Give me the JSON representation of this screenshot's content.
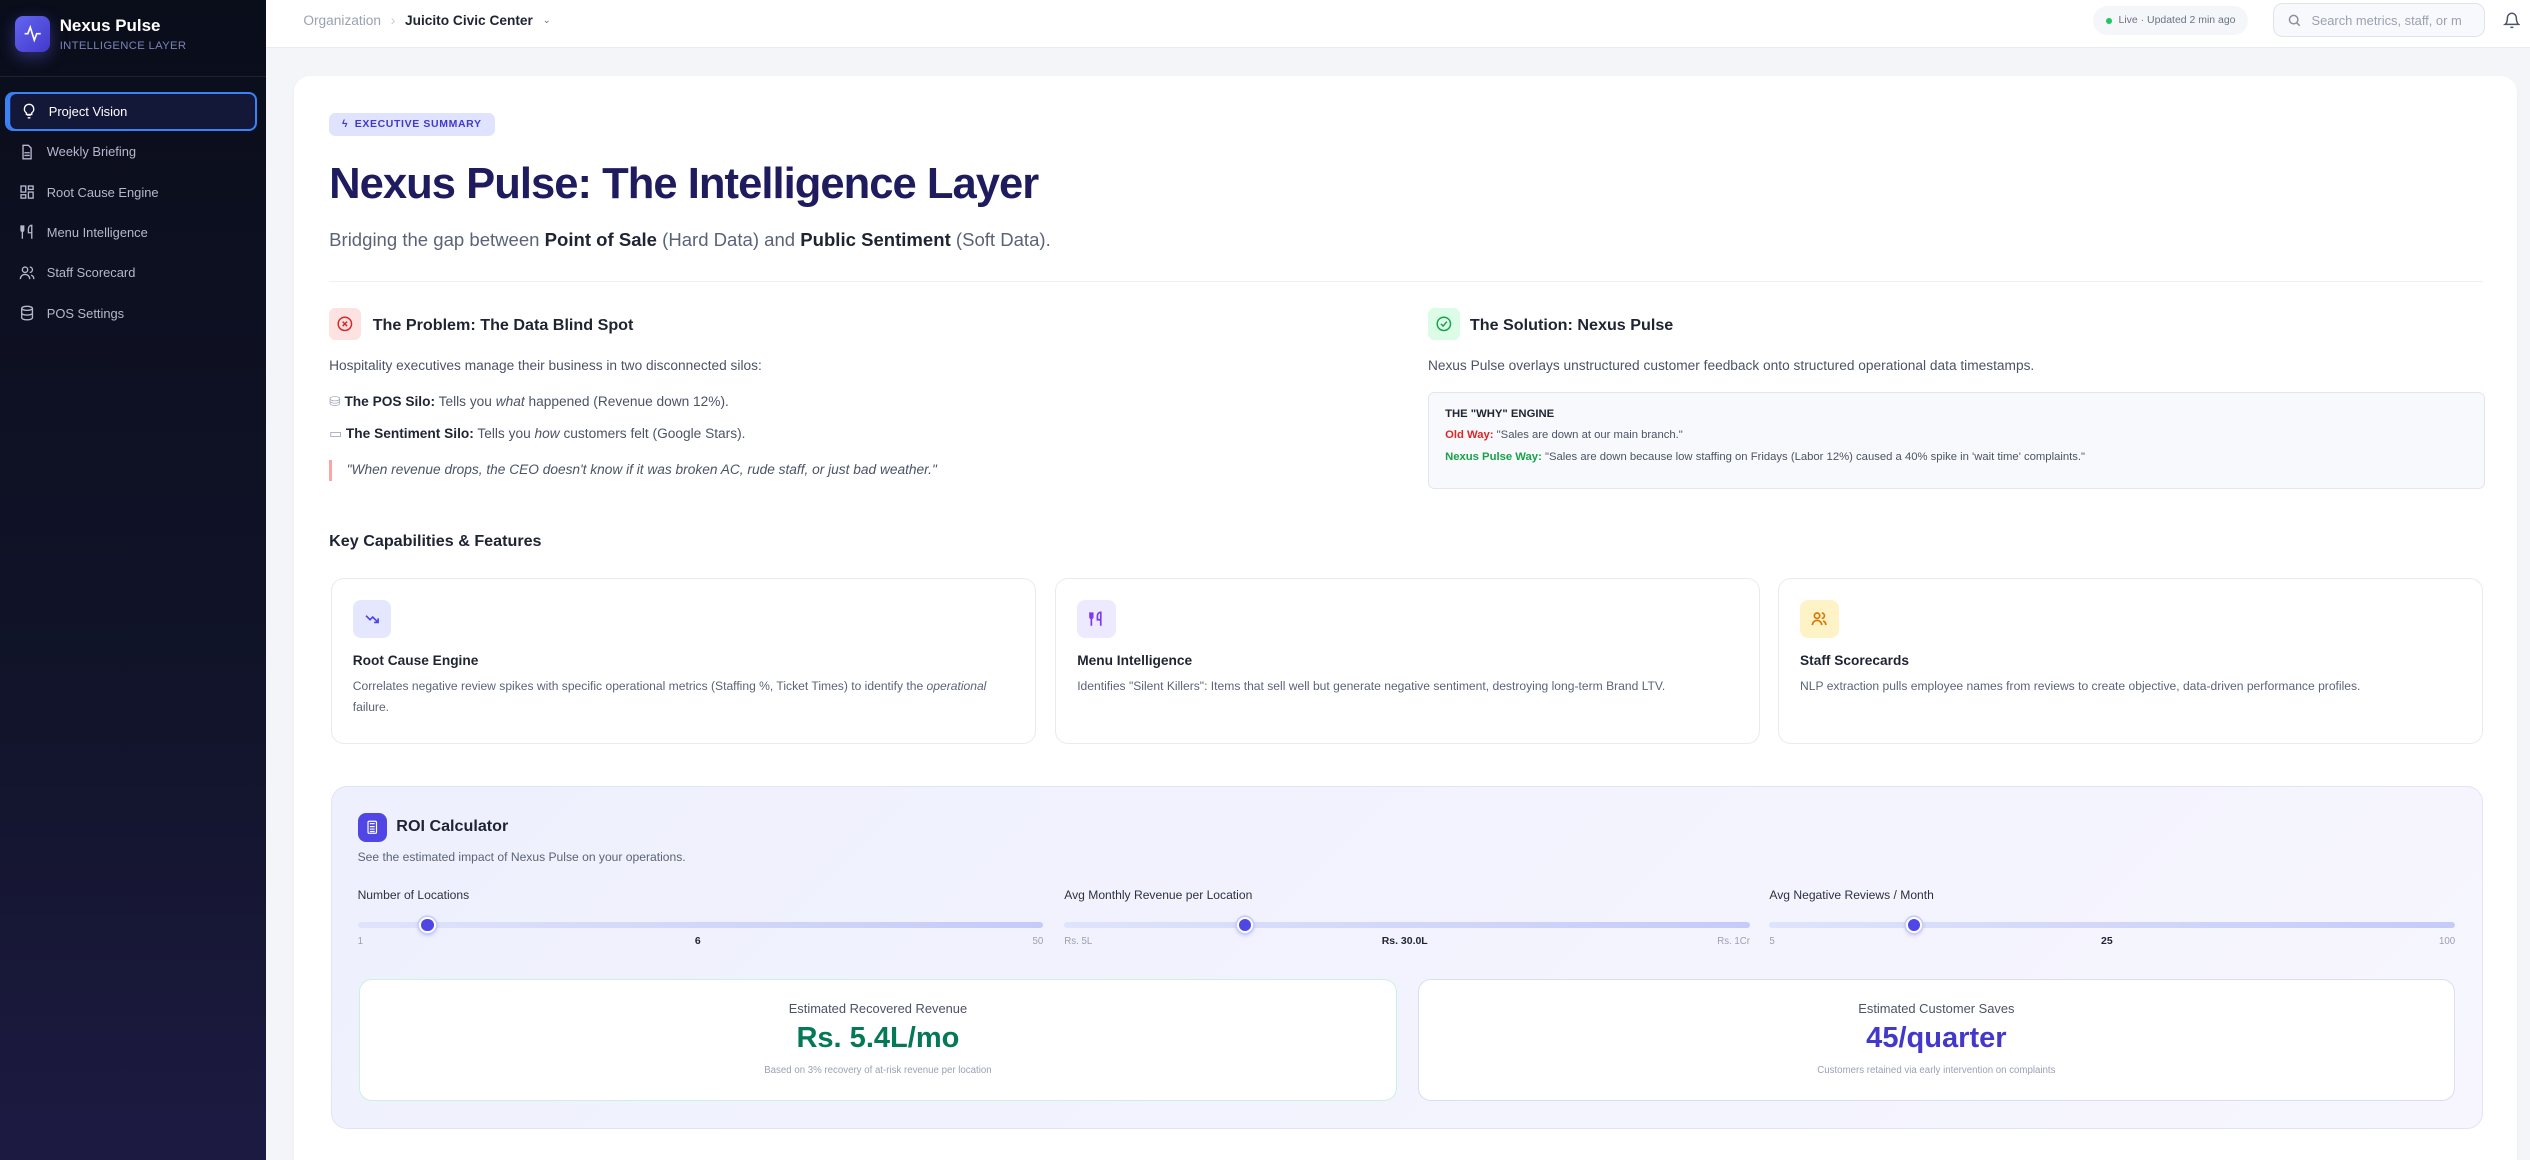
{
  "sidebar": {
    "brand": "Nexus Pulse",
    "subtitle": "INTELLIGENCE LAYER",
    "items": [
      {
        "label": "Project Vision",
        "icon": "lightbulb-icon",
        "active": true
      },
      {
        "label": "Weekly Briefing",
        "icon": "document-icon"
      },
      {
        "label": "Root Cause Engine",
        "icon": "grid-icon"
      },
      {
        "label": "Menu Intelligence",
        "icon": "utensils-icon"
      },
      {
        "label": "Staff Scorecard",
        "icon": "users-icon"
      },
      {
        "label": "POS Settings",
        "icon": "database-icon"
      }
    ]
  },
  "topbar": {
    "breadcrumb_root": "Organization",
    "breadcrumb_current": "Juicito Civic Center",
    "live_status": "Live · Updated 2 min ago",
    "search_placeholder": "Search metrics, staff, or m"
  },
  "hero": {
    "badge": "EXECUTIVE SUMMARY",
    "title": "Nexus Pulse: The Intelligence Layer",
    "sub_pre": "Bridging the gap between ",
    "sub_b1": "Point of Sale",
    "sub_mid": " (Hard Data) and ",
    "sub_b2": "Public Sentiment",
    "sub_post": " (Soft Data)."
  },
  "problem": {
    "title": "The Problem: The Data Blind Spot",
    "intro": "Hospitality executives manage their business in two disconnected silos:",
    "b1_label": "The POS Silo:",
    "b1_pre": " Tells you ",
    "b1_em": "what",
    "b1_post": " happened (Revenue down 12%).",
    "b2_label": "The Sentiment Silo:",
    "b2_pre": " Tells you ",
    "b2_em": "how",
    "b2_post": " customers felt (Google Stars).",
    "quote": "\"When revenue drops, the CEO doesn't know if it was broken AC, rude staff, or just bad weather.\""
  },
  "solution": {
    "title": "The Solution: Nexus Pulse",
    "intro": "Nexus Pulse overlays unstructured customer feedback onto structured operational data timestamps.",
    "engine_title": "THE \"WHY\" ENGINE",
    "old_label": "Old Way:",
    "old_text": " \"Sales are down at our main branch.\"",
    "new_label": "Nexus Pulse Way:",
    "new_text": " \"Sales are down because low staffing on Fridays (Labor 12%) caused a 40% spike in 'wait time' complaints.\""
  },
  "capabilities": {
    "heading": "Key Capabilities & Features",
    "items": [
      {
        "title": "Root Cause Engine",
        "desc_pre": "Correlates negative review spikes with specific operational metrics (Staffing %, Ticket Times) to identify the ",
        "desc_em": "operational",
        "desc_post": " failure."
      },
      {
        "title": "Menu Intelligence",
        "desc_pre": "Identifies \"Silent Killers\": Items that sell well but generate negative sentiment, destroying long-term Brand LTV.",
        "desc_em": "",
        "desc_post": ""
      },
      {
        "title": "Staff Scorecards",
        "desc_pre": "NLP extraction pulls employee names from reviews to create objective, data-driven performance profiles.",
        "desc_em": "",
        "desc_post": ""
      }
    ]
  },
  "roi": {
    "title": "ROI Calculator",
    "subtitle": "See the estimated impact of Nexus Pulse on your operations.",
    "sliders": [
      {
        "label": "Number of Locations",
        "min_label": "1",
        "max_label": "50",
        "value_label": "6",
        "min": 1,
        "max": 50,
        "value": 6
      },
      {
        "label": "Avg Monthly Revenue per Location",
        "min_label": "Rs. 5L",
        "max_label": "Rs. 1Cr",
        "value_label": "Rs. 30.0L",
        "min": 5,
        "max": 100,
        "value": 30
      },
      {
        "label": "Avg Negative Reviews / Month",
        "min_label": "5",
        "max_label": "100",
        "value_label": "25",
        "min": 5,
        "max": 100,
        "value": 25
      }
    ],
    "results": [
      {
        "label": "Estimated Recovered Revenue",
        "value": "Rs. 5.4L/mo",
        "caption": "Based on 3% recovery of at-risk revenue per location",
        "color": "#047857"
      },
      {
        "label": "Estimated Customer Saves",
        "value": "45/quarter",
        "caption": "Customers retained via early intervention on complaints",
        "color": "#4338ca"
      }
    ]
  },
  "colors": {
    "accent": "#4f46e5",
    "title": "#1e1b5e",
    "danger": "#dc2626",
    "success": "#16a34a"
  }
}
